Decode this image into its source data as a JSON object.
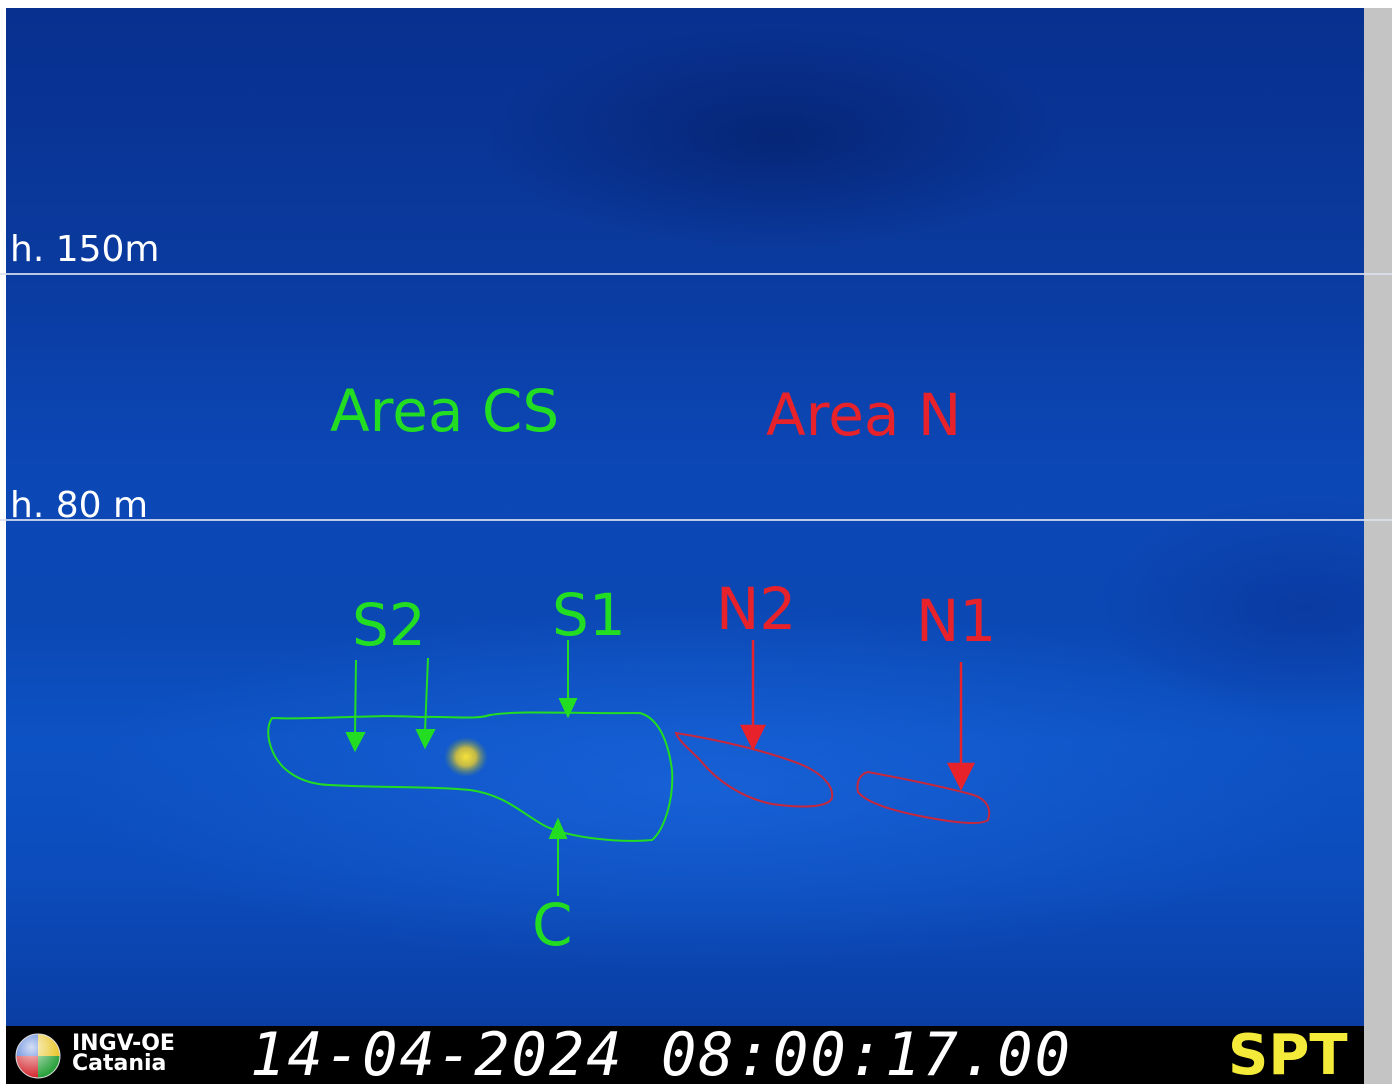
{
  "levels": {
    "upper": "h. 150m",
    "lower": "h. 80 m"
  },
  "areas": {
    "cs": "Area CS",
    "n": "Area N"
  },
  "vents": {
    "s2": "S2",
    "s1": "S1",
    "c": "C",
    "n2": "N2",
    "n1": "N1"
  },
  "footer": {
    "logo_line1": "INGV-OE",
    "logo_line2": "Catania",
    "timestamp": "14-04-2024 08:00:17.00",
    "station": "SPT"
  },
  "colors": {
    "area_cs": "#22dd22",
    "area_n": "#e8222a",
    "station": "#f3ea3a",
    "background": "#0b48b4"
  },
  "icons": {
    "logo": "ingv-globe-icon"
  }
}
